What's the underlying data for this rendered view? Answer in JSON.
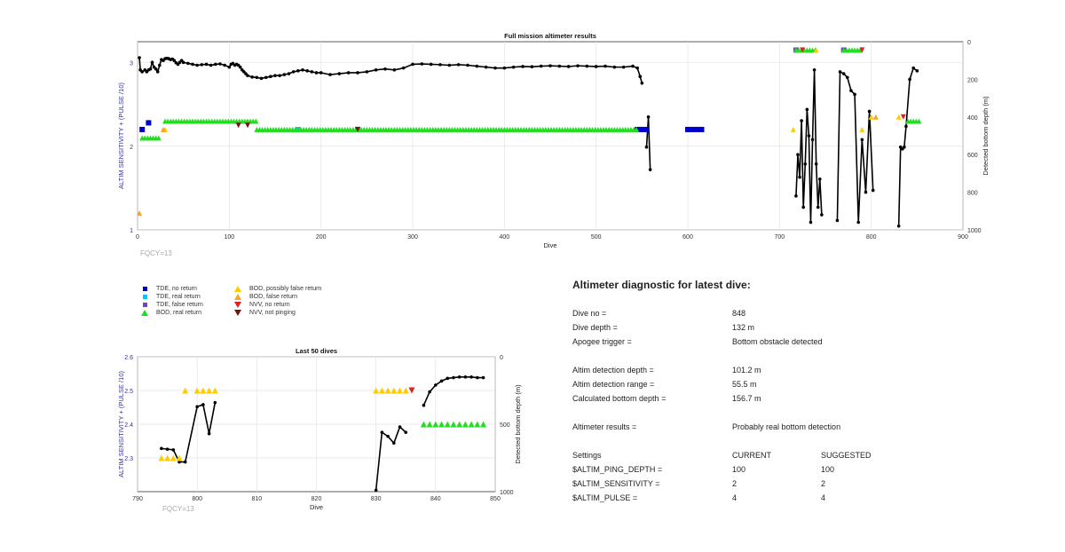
{
  "chart_data": [
    {
      "type": "scatter",
      "title": "Full mission altimeter results",
      "xlabel": "Dive",
      "ylabel": "ALTIM SENSITIVITY + (PULSE /10)",
      "y2label": "Detected bottom depth (m)",
      "xlim": [
        0,
        900
      ],
      "ylim": [
        1,
        3.25
      ],
      "y2lim": [
        1000,
        0
      ],
      "xticks": [
        "0",
        "100",
        "200",
        "300",
        "400",
        "500",
        "600",
        "700",
        "800",
        "900"
      ],
      "yticks": [
        "1",
        "2",
        "3"
      ],
      "y2ticks": [
        "0",
        "200",
        "400",
        "600",
        "800",
        "1000"
      ],
      "grid": true,
      "fqcy_label": "FQCY=13",
      "series": [
        {
          "name": "Detected bottom depth",
          "type": "line",
          "axis": "right",
          "color": "#000000",
          "segments": [
            {
              "x": [
                2,
                3,
                5,
                8,
                10,
                12,
                14,
                16,
                18,
                20,
                22,
                24,
                26,
                28,
                30,
                32,
                34,
                36,
                38,
                40,
                42,
                44,
                46,
                48,
                50,
                55,
                60,
                65,
                70,
                75,
                80,
                85,
                90,
                95,
                100,
                102,
                104,
                106,
                108,
                110,
                112,
                114,
                116,
                118,
                120,
                125,
                130,
                135,
                140,
                145,
                150,
                155,
                160,
                165,
                170,
                175,
                180,
                185,
                190,
                195,
                200,
                210,
                220,
                230,
                240,
                250,
                260,
                270,
                280,
                290,
                300,
                310,
                320,
                330,
                340,
                350,
                360,
                370,
                380,
                390,
                400,
                410,
                420,
                430,
                440,
                450,
                460,
                470,
                480,
                490,
                500,
                510,
                520,
                530,
                540,
                545,
                548,
                550
              ],
              "y": [
                85,
                150,
                160,
                150,
                160,
                150,
                145,
                110,
                135,
                145,
                160,
                125,
                95,
                100,
                90,
                88,
                90,
                95,
                92,
                100,
                112,
                120,
                110,
                100,
                110,
                115,
                120,
                125,
                122,
                120,
                125,
                120,
                118,
                125,
                135,
                120,
                115,
                125,
                120,
                125,
                135,
                150,
                160,
                170,
                180,
                188,
                190,
                195,
                190,
                185,
                180,
                180,
                175,
                170,
                160,
                155,
                150,
                155,
                160,
                165,
                165,
                175,
                170,
                165,
                165,
                160,
                150,
                145,
                150,
                140,
                120,
                118,
                120,
                122,
                125,
                122,
                125,
                130,
                135,
                140,
                140,
                135,
                132,
                133,
                130,
                128,
                130,
                132,
                128,
                130,
                132,
                130,
                135,
                135,
                130,
                140,
                185,
                220
              ]
            },
            {
              "x": [
                555,
                557,
                559
              ],
              "y": [
                560,
                400,
                680
              ]
            },
            {
              "x": [
                718,
                720,
                722,
                724,
                726,
                728,
                730,
                732,
                734,
                736,
                738,
                740,
                742,
                744,
                746
              ],
              "y": [
                820,
                600,
                720,
                420,
                880,
                650,
                360,
                500,
                960,
                520,
                150,
                650,
                880,
                730,
                920
              ]
            },
            {
              "x": [
                763,
                766,
                770,
                774,
                778,
                782,
                786,
                790,
                794,
                798,
                802
              ],
              "y": [
                950,
                160,
                170,
                190,
                260,
                280,
                960,
                520,
                800,
                370,
                790
              ]
            },
            {
              "x": [
                830,
                832,
                834,
                836,
                838,
                842,
                846,
                850
              ],
              "y": [
                980,
                560,
                570,
                560,
                450,
                200,
                140,
                155
              ]
            }
          ]
        },
        {
          "name": "TDE, no return",
          "marker": "square",
          "color": "#0000cc",
          "x": [
            5,
            12,
            545,
            550,
            555,
            600,
            605,
            610,
            615
          ],
          "y": [
            2.2,
            2.28,
            2.2,
            2.2,
            2.2,
            2.2,
            2.2,
            2.2,
            2.2
          ]
        },
        {
          "name": "TDE, real return",
          "marker": "square",
          "color": "#00c8ff",
          "x": [
            175,
            240
          ],
          "y": [
            2.2,
            2.2
          ]
        },
        {
          "name": "TDE, false return",
          "marker": "square",
          "color": "#7b3fc4",
          "x": [
            718,
            770
          ],
          "y": [
            3.15,
            3.15
          ]
        },
        {
          "name": "BOD, real return",
          "marker": "triangle-up",
          "color": "#22dd22",
          "x_range": [
            [
              5,
              25
            ],
            [
              30,
              130
            ],
            [
              130,
              545
            ],
            [
              718,
              740
            ],
            [
              770,
              790
            ],
            [
              840,
              852
            ]
          ],
          "y": [
            2.1,
            2.3,
            2.2,
            3.15,
            3.15,
            2.3
          ]
        },
        {
          "name": "BOD, possibly false return",
          "marker": "triangle-up",
          "color": "#ffcc00",
          "x": [
            30,
            715,
            740,
            790,
            800,
            830
          ],
          "y": [
            2.2,
            2.2,
            3.15,
            2.2,
            2.35,
            2.35
          ]
        },
        {
          "name": "BOD, false return",
          "marker": "triangle-up",
          "color": "#f5a623",
          "x": [
            2,
            28,
            805
          ],
          "y": [
            1.2,
            2.2,
            2.35
          ]
        },
        {
          "name": "NVV, no return",
          "marker": "triangle-down",
          "color": "#dd2222",
          "x": [
            725,
            790,
            835
          ],
          "y": [
            3.15,
            3.15,
            2.35
          ]
        },
        {
          "name": "NVV, not pinging",
          "marker": "triangle-down",
          "color": "#7a1010",
          "x": [
            110,
            120,
            240
          ],
          "y": [
            2.25,
            2.25,
            2.2
          ]
        }
      ]
    },
    {
      "type": "scatter",
      "title": "Last 50 dives",
      "xlabel": "Dive",
      "ylabel": "ALTIM SENSITIVITY + (PULSE /10)",
      "y2label": "Detected bottom depth (m)",
      "xlim": [
        790,
        850
      ],
      "ylim": [
        2.2,
        2.6
      ],
      "y2lim": [
        1000,
        0
      ],
      "xticks": [
        "790",
        "800",
        "810",
        "820",
        "830",
        "840",
        "850"
      ],
      "yticks": [
        "2.3",
        "2.4",
        "2.5",
        "2.6"
      ],
      "y2ticks": [
        "0",
        "500",
        "1000"
      ],
      "grid": true,
      "fqcy_label": "FQCY=13",
      "series": [
        {
          "name": "Detected bottom depth",
          "type": "line",
          "axis": "right",
          "color": "#000000",
          "segments": [
            {
              "x": [
                794,
                795,
                796,
                797,
                798,
                800,
                801,
                802,
                803
              ],
              "y": [
                680,
                685,
                690,
                780,
                780,
                370,
                355,
                570,
                340
              ]
            },
            {
              "x": [
                830,
                831,
                832,
                833,
                834,
                835
              ],
              "y": [
                990,
                560,
                590,
                640,
                520,
                560
              ]
            },
            {
              "x": [
                838,
                839,
                840,
                841,
                842,
                843,
                844,
                845,
                846,
                847,
                848
              ],
              "y": [
                360,
                260,
                210,
                180,
                160,
                155,
                150,
                150,
                150,
                155,
                155
              ]
            }
          ]
        },
        {
          "name": "BOD, possibly false return",
          "marker": "triangle-up",
          "color": "#ffcc00",
          "x": [
            794,
            795,
            796,
            797,
            798,
            800,
            801,
            802,
            803,
            830,
            831,
            832,
            833,
            834,
            835
          ],
          "y": [
            2.3,
            2.3,
            2.3,
            2.3,
            2.5,
            2.5,
            2.5,
            2.5,
            2.5,
            2.5,
            2.5,
            2.5,
            2.5,
            2.5,
            2.5
          ]
        },
        {
          "name": "NVV, no return",
          "marker": "triangle-down",
          "color": "#dd2222",
          "x": [
            836
          ],
          "y": [
            2.5
          ]
        },
        {
          "name": "BOD, real return",
          "marker": "triangle-up",
          "color": "#22dd22",
          "x": [
            838,
            839,
            840,
            841,
            842,
            843,
            844,
            845,
            846,
            847,
            848
          ],
          "y": [
            2.4,
            2.4,
            2.4,
            2.4,
            2.4,
            2.4,
            2.4,
            2.4,
            2.4,
            2.4,
            2.4
          ]
        }
      ]
    }
  ],
  "legend": [
    {
      "label": "TDE, no return",
      "marker": "square",
      "color": "#0000cc"
    },
    {
      "label": "TDE, real return",
      "marker": "square",
      "color": "#00c8ff"
    },
    {
      "label": "TDE, false return",
      "marker": "square",
      "color": "#7b3fc4"
    },
    {
      "label": "BOD, real return",
      "marker": "triangle-up",
      "color": "#22dd22"
    },
    {
      "label": "BOD, possibly false return",
      "marker": "triangle-up",
      "color": "#ffcc00"
    },
    {
      "label": "BOD, false return",
      "marker": "triangle-up",
      "color": "#f5a623"
    },
    {
      "label": "NVV, no return",
      "marker": "triangle-down",
      "color": "#dd2222"
    },
    {
      "label": "NVV, not pinging",
      "marker": "triangle-down",
      "color": "#7a1010"
    }
  ],
  "diagnostic": {
    "title": "Altimeter diagnostic for latest dive:",
    "rows": [
      {
        "label": "Dive no =",
        "value": "848"
      },
      {
        "label": "Dive depth =",
        "value": "132 m"
      },
      {
        "label": "Apogee trigger =",
        "value": "Bottom obstacle detected"
      },
      {
        "label": "Altim detection depth =",
        "value": "101.2 m"
      },
      {
        "label": "Altim detection range =",
        "value": "55.5 m"
      },
      {
        "label": "Calculated bottom depth =",
        "value": "156.7 m"
      },
      {
        "label": "Altimeter results =",
        "value": "Probably real bottom detection"
      }
    ],
    "settings_header": {
      "label": "Settings",
      "current": "CURRENT",
      "suggested": "SUGGESTED"
    },
    "settings": [
      {
        "label": "$ALTIM_PING_DEPTH =",
        "current": "100",
        "suggested": "100"
      },
      {
        "label": "$ALTIM_SENSITIVITY =",
        "current": "2",
        "suggested": "2"
      },
      {
        "label": "$ALTIM_PULSE =",
        "current": "4",
        "suggested": "4"
      }
    ]
  }
}
